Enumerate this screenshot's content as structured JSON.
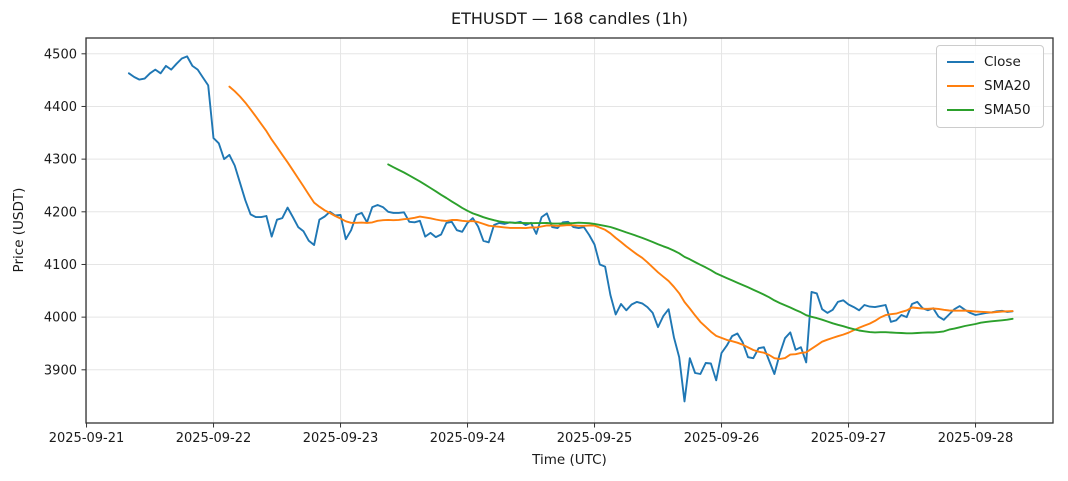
{
  "figure": {
    "title": "ETHUSDT — 168 candles (1h)"
  },
  "axes": {
    "xlabel": "Time (UTC)",
    "ylabel": "Price (USDT)"
  },
  "colors": {
    "close": "#1f77b4",
    "sma20": "#ff7f0e",
    "sma50": "#2ca02c",
    "grid": "#e5e5e5",
    "spine": "#333333"
  },
  "chart_data": {
    "type": "line",
    "title": "ETHUSDT — 168 candles (1h)",
    "xlabel": "Time (UTC)",
    "ylabel": "Price (USDT)",
    "grid": true,
    "legend_position": "upper right",
    "candle_count": 168,
    "candle_interval": "1h",
    "x_origin": "2025-09-21 00:00 UTC",
    "x_tick_labels": [
      "2025-09-21",
      "2025-09-22",
      "2025-09-23",
      "2025-09-24",
      "2025-09-25",
      "2025-09-26",
      "2025-09-27",
      "2025-09-28"
    ],
    "x_tick_hours": [
      0,
      24,
      48,
      72,
      96,
      120,
      144,
      168
    ],
    "y_ticks": [
      3900,
      4000,
      4100,
      4200,
      4300,
      4400,
      4500
    ],
    "xlim_hours": [
      -0.1,
      182.64
    ],
    "ylim": [
      3799,
      4530
    ],
    "series": [
      {
        "name": "Close",
        "color": "#1f77b4",
        "start_hour": 8,
        "step_hours": 1,
        "values": [
          4463,
          4456,
          4451,
          4453,
          4463,
          4470,
          4463,
          4477,
          4470,
          4481,
          4491,
          4495,
          4477,
          4470,
          4455,
          4440,
          4340,
          4330,
          4300,
          4308,
          4288,
          4255,
          4222,
          4195,
          4190,
          4190,
          4192,
          4153,
          4185,
          4188,
          4208,
          4190,
          4171,
          4163,
          4145,
          4137,
          4185,
          4191,
          4200,
          4193,
          4194,
          4148,
          4165,
          4194,
          4198,
          4180,
          4209,
          4213,
          4209,
          4200,
          4198,
          4198,
          4199,
          4181,
          4180,
          4183,
          4153,
          4160,
          4152,
          4157,
          4179,
          4181,
          4165,
          4162,
          4179,
          4188,
          4172,
          4145,
          4142,
          4175,
          4179,
          4177,
          4180,
          4179,
          4181,
          4175,
          4179,
          4158,
          4190,
          4197,
          4171,
          4169,
          4180,
          4181,
          4171,
          4169,
          4171,
          4156,
          4138,
          4100,
          4096,
          4042,
          4005,
          4025,
          4013,
          4024,
          4029,
          4026,
          4019,
          4008,
          3981,
          4002,
          4015,
          3962,
          3924,
          3840,
          3922,
          3894,
          3892,
          3913,
          3912,
          3880,
          3932,
          3946,
          3964,
          3969,
          3952,
          3924,
          3922,
          3941,
          3943,
          3917,
          3892,
          3930,
          3960,
          3971,
          3938,
          3943,
          3914,
          4048,
          4045,
          4015,
          4008,
          4014,
          4029,
          4032,
          4024,
          4019,
          4013,
          4023,
          4020,
          4019,
          4021,
          4023,
          3991,
          3994,
          4004,
          4000,
          4025,
          4029,
          4017,
          4013,
          4017,
          4001,
          3995,
          4005,
          4015,
          4021,
          4014,
          4008,
          4004,
          4006,
          4008,
          4009,
          4011,
          4012,
          4010,
          4011
        ]
      },
      {
        "name": "SMA20",
        "color": "#ff7f0e",
        "derived_from": "Close",
        "derivation": "sma",
        "window": 20
      },
      {
        "name": "SMA50",
        "color": "#2ca02c",
        "derived_from": "Close",
        "derivation": "sma",
        "window": 50
      }
    ]
  }
}
